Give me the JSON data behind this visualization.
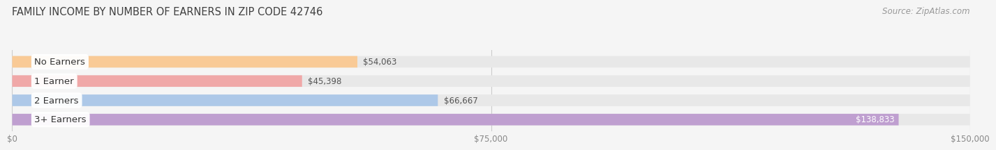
{
  "title": "FAMILY INCOME BY NUMBER OF EARNERS IN ZIP CODE 42746",
  "source": "Source: ZipAtlas.com",
  "categories": [
    "No Earners",
    "1 Earner",
    "2 Earners",
    "3+ Earners"
  ],
  "values": [
    54063,
    45398,
    66667,
    138833
  ],
  "bar_colors": [
    "#f9ca96",
    "#f0a8a8",
    "#adc8e8",
    "#bf9fd0"
  ],
  "value_labels": [
    "$54,063",
    "$45,398",
    "$66,667",
    "$138,833"
  ],
  "xlim": [
    0,
    150000
  ],
  "xticks": [
    0,
    75000,
    150000
  ],
  "xtick_labels": [
    "$0",
    "$75,000",
    "$150,000"
  ],
  "background_color": "#f5f5f5",
  "bar_background_color": "#e8e8e8",
  "title_fontsize": 10.5,
  "source_fontsize": 8.5,
  "label_fontsize": 9.5,
  "value_fontsize": 8.5
}
